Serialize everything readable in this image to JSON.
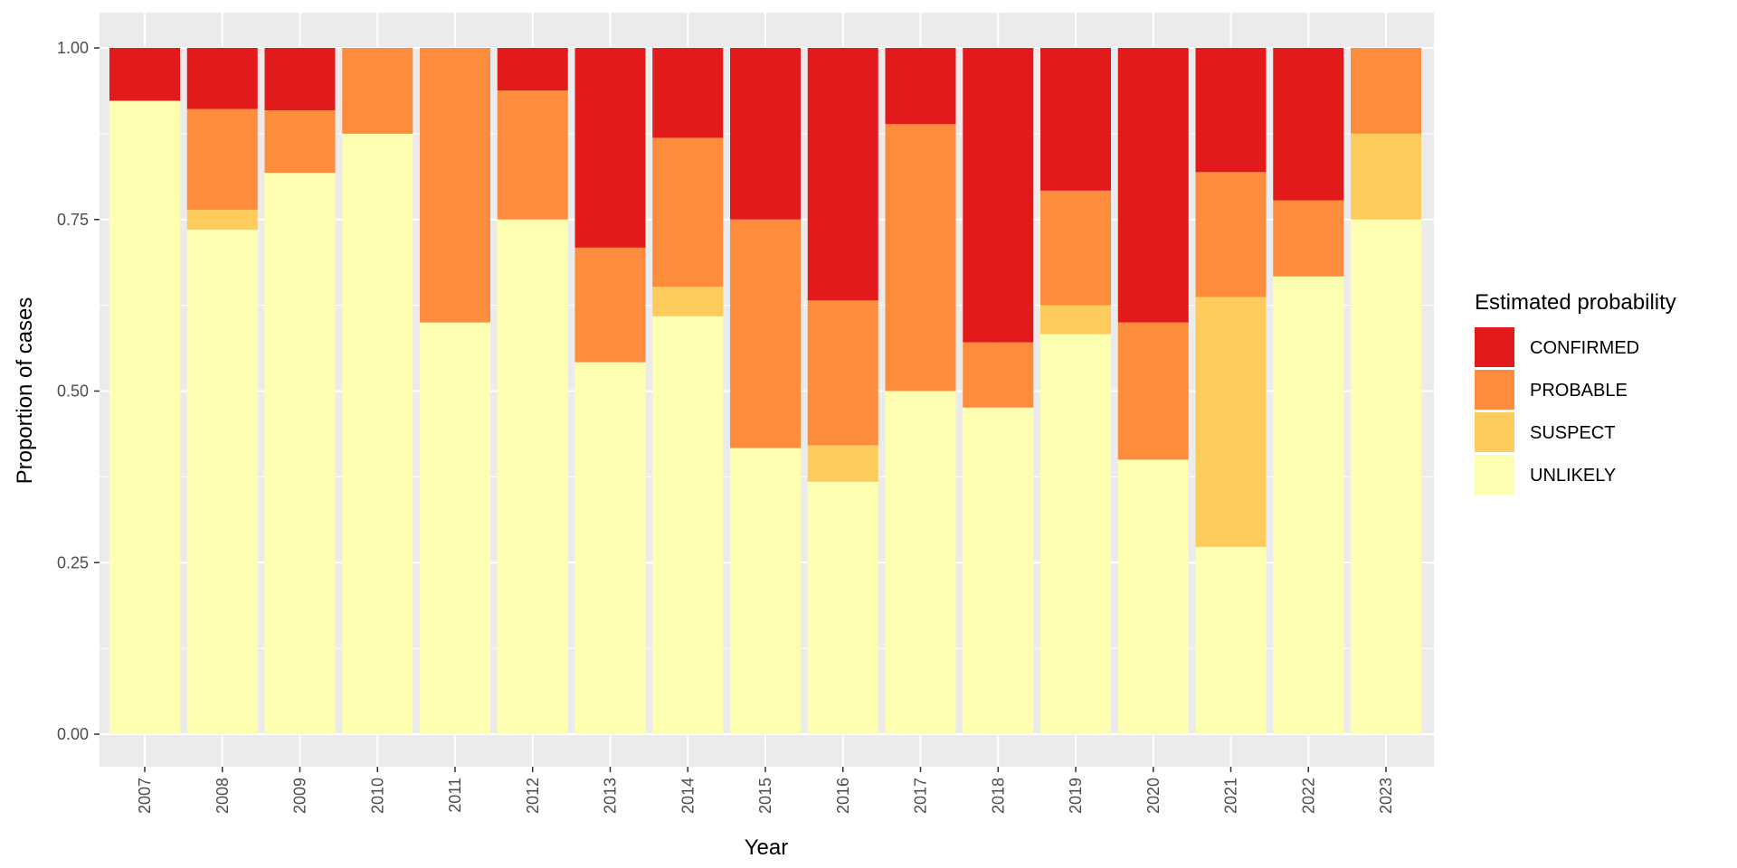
{
  "chart_data": {
    "type": "bar",
    "stacked": true,
    "stack_mode": "proportion",
    "categories": [
      "2007",
      "2008",
      "2009",
      "2010",
      "2011",
      "2012",
      "2013",
      "2014",
      "2015",
      "2016",
      "2017",
      "2018",
      "2019",
      "2020",
      "2021",
      "2022",
      "2023"
    ],
    "series": [
      {
        "name": "UNLIKELY",
        "color": "#FFFFB2",
        "values": [
          0.923,
          0.735,
          0.818,
          0.875,
          0.6,
          0.75,
          0.542,
          0.609,
          0.417,
          0.368,
          0.5,
          0.476,
          0.583,
          0.4,
          0.273,
          0.667,
          0.75
        ]
      },
      {
        "name": "SUSPECT",
        "color": "#FECC5C",
        "values": [
          0.0,
          0.029,
          0.0,
          0.0,
          0.0,
          0.0,
          0.0,
          0.043,
          0.0,
          0.053,
          0.0,
          0.0,
          0.042,
          0.0,
          0.364,
          0.0,
          0.125
        ]
      },
      {
        "name": "PROBABLE",
        "color": "#FD8D3C",
        "values": [
          0.0,
          0.147,
          0.091,
          0.125,
          0.4,
          0.188,
          0.167,
          0.217,
          0.333,
          0.211,
          0.389,
          0.095,
          0.167,
          0.2,
          0.182,
          0.111,
          0.125
        ]
      },
      {
        "name": "CONFIRMED",
        "color": "#E31A1C",
        "values": [
          0.077,
          0.089,
          0.091,
          0.0,
          0.0,
          0.062,
          0.291,
          0.131,
          0.25,
          0.368,
          0.111,
          0.429,
          0.208,
          0.4,
          0.181,
          0.222,
          0.0
        ]
      }
    ],
    "xlabel": "Year",
    "ylabel": "Proportion of cases",
    "ylim": [
      0,
      1
    ],
    "yticks": [
      0,
      0.25,
      0.5,
      0.75,
      1.0
    ],
    "ytick_labels": [
      "0.00",
      "0.25",
      "0.50",
      "0.75",
      "1.00"
    ],
    "legend": {
      "title": "Estimated probability",
      "placement": "right",
      "items": [
        "CONFIRMED",
        "PROBABLE",
        "SUSPECT",
        "UNLIKELY"
      ]
    },
    "grid": true,
    "panel_background": "#EBEBEB",
    "grid_color": "#FFFFFF"
  }
}
